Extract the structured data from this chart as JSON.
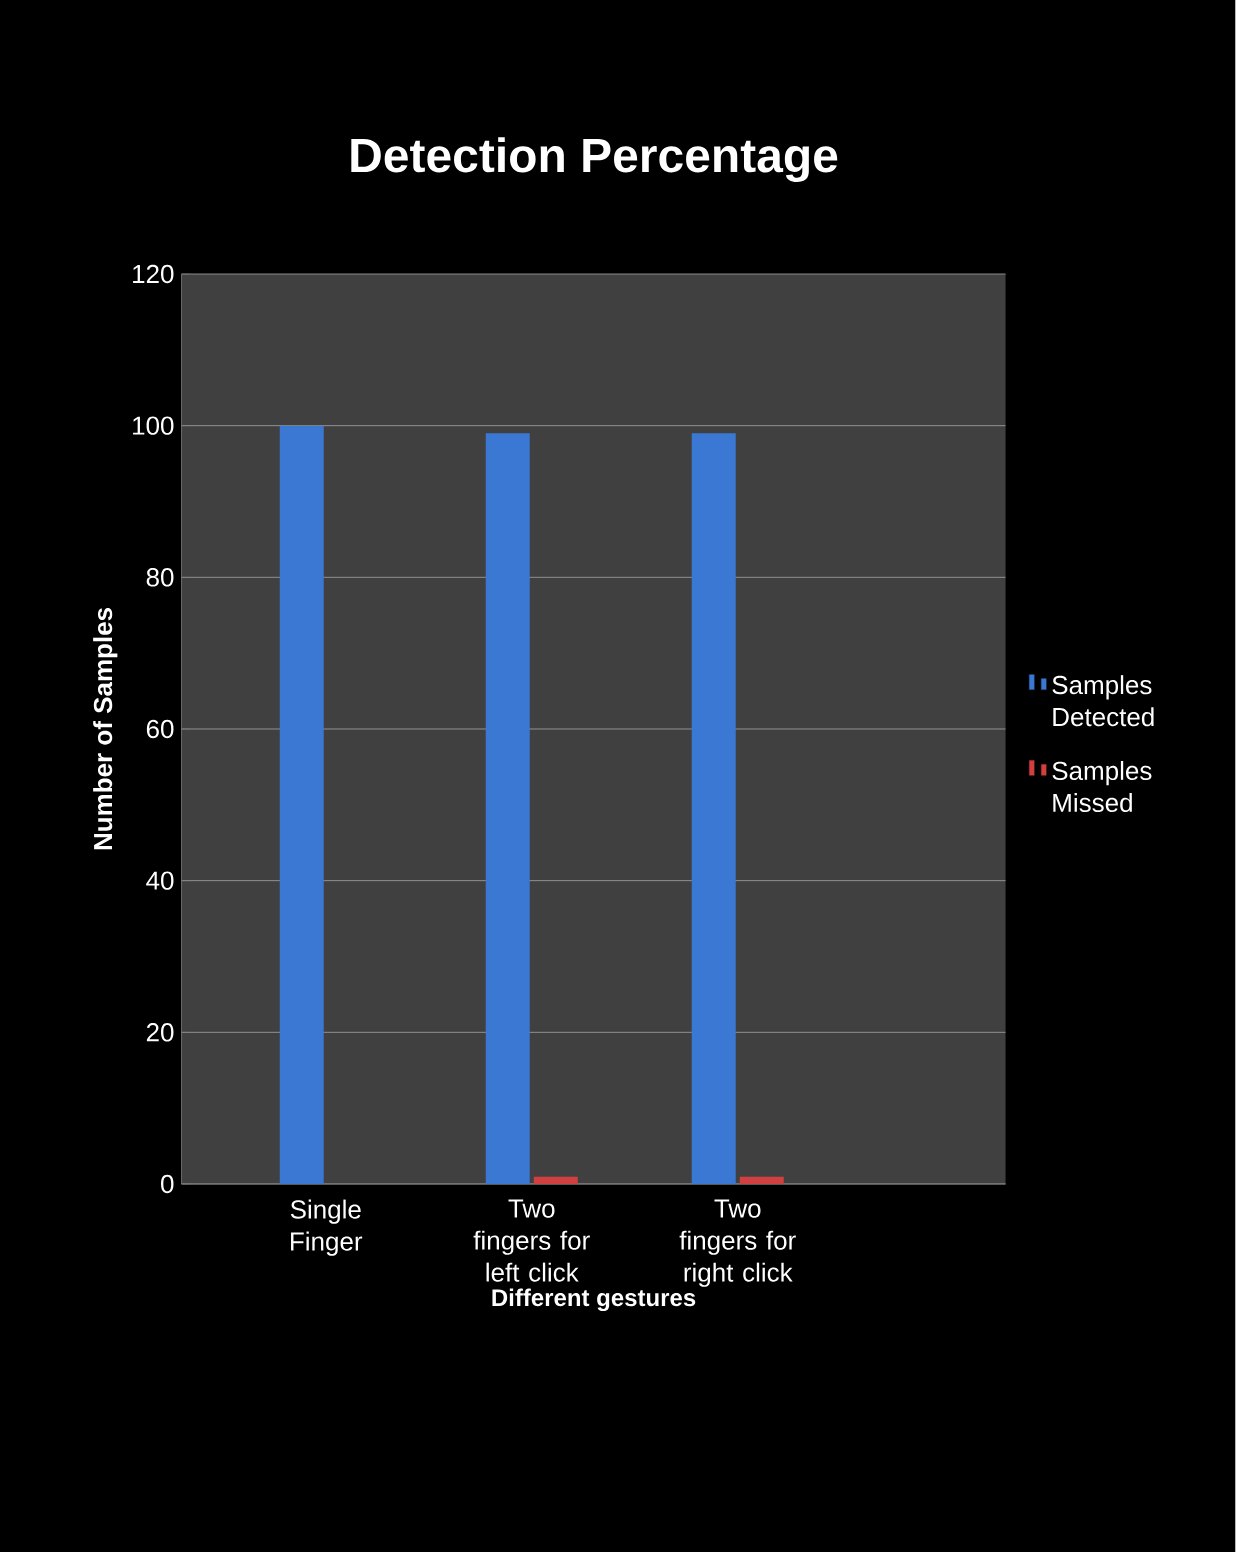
{
  "chart_data": {
    "type": "bar",
    "title": "Detection Percentage",
    "xlabel": "Different gestures",
    "ylabel": "Number of Samples",
    "categories": [
      "Single Finger",
      "Two fingers for left click",
      "Two fingers for right click"
    ],
    "series": [
      {
        "name": "Samples Detected",
        "color": "#3a78d4",
        "values": [
          100,
          99,
          99
        ]
      },
      {
        "name": "Samples Missed",
        "color": "#d04040",
        "values": [
          0,
          1,
          1
        ]
      }
    ],
    "ylim": [
      0,
      120
    ],
    "yticks": [
      0,
      20,
      40,
      60,
      80,
      100,
      120
    ],
    "grid": "y",
    "legend": "right"
  }
}
